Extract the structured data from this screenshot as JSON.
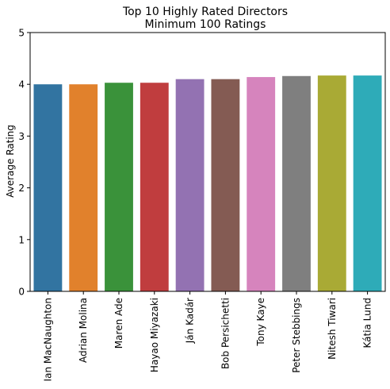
{
  "chart_data": {
    "type": "bar",
    "title_line1": "Top 10 Highly Rated Directors",
    "title_line2": "Minimum 100 Ratings",
    "xlabel": "",
    "ylabel": "Average Rating",
    "ylim": [
      0,
      5
    ],
    "yticks": [
      "0",
      "1",
      "2",
      "3",
      "4",
      "5"
    ],
    "grid": false,
    "categories": [
      "Ian MacNaughton",
      "Adrian Molina",
      "Maren Ade",
      "Hayao Miyazaki",
      "Ján Kadár",
      "Bob Persichetti",
      "Tony Kaye",
      "Peter Stebbings",
      "Nitesh Tiwari",
      "Kátia Lund"
    ],
    "values": [
      4.0,
      4.0,
      4.03,
      4.03,
      4.1,
      4.1,
      4.14,
      4.16,
      4.17,
      4.17
    ],
    "colors": [
      "#3274a1",
      "#e1812c",
      "#3a923a",
      "#c03d3e",
      "#9372b2",
      "#845b53",
      "#d684bd",
      "#7f7f7f",
      "#a9aa35",
      "#2eabb8"
    ]
  }
}
